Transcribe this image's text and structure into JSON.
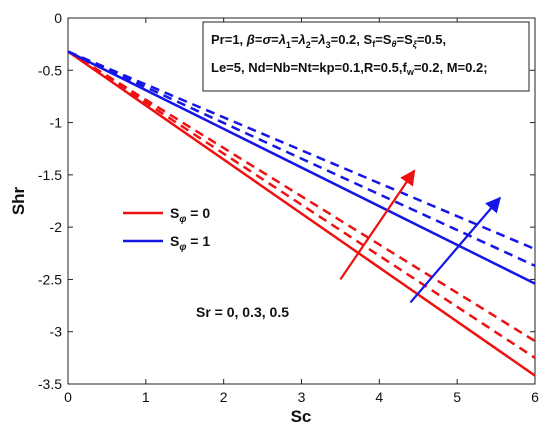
{
  "chart_data": {
    "type": "line",
    "xlabel": "Sc",
    "ylabel": "Shr",
    "xlim": [
      0,
      6
    ],
    "ylim": [
      -3.5,
      0
    ],
    "xticks": [
      "0",
      "1",
      "2",
      "3",
      "4",
      "5",
      "6"
    ],
    "yticks": [
      "0",
      "-0.5",
      "-1",
      "-1.5",
      "-2",
      "-2.5",
      "-3",
      "-3.5"
    ],
    "grid": false,
    "legend_position": "left-middle",
    "parameter_note": {
      "line1": "Pr=1, β=σ=λ₁=λ₂=λ₃=0.2, S_f=S_θ=S_ξ=0.5,",
      "line2": "Le=5, Nd=Nb=Nt=kp=0.1,R=0.5,f_w=0.2, M=0.2;"
    },
    "annotation": "Sr = 0, 0.3, 0.5",
    "colors": {
      "red": "#ee1111",
      "blue": "#1515e6"
    },
    "legend": [
      {
        "label": "S_φ = 0",
        "color": "#ee1111"
      },
      {
        "label": "S_φ = 1",
        "color": "#1515e6"
      }
    ],
    "series": [
      {
        "group": "S_φ = 0",
        "Sr": 0,
        "style": "solid",
        "color": "#ee1111",
        "x": [
          0,
          6
        ],
        "y": [
          -0.32,
          -3.42
        ]
      },
      {
        "group": "S_φ = 0",
        "Sr": 0.3,
        "style": "dashed",
        "color": "#ee1111",
        "x": [
          0,
          6
        ],
        "y": [
          -0.32,
          -3.25
        ]
      },
      {
        "group": "S_φ = 0",
        "Sr": 0.5,
        "style": "dashed",
        "color": "#ee1111",
        "x": [
          0,
          6
        ],
        "y": [
          -0.32,
          -3.09
        ]
      },
      {
        "group": "S_φ = 1",
        "Sr": 0,
        "style": "solid",
        "color": "#1515e6",
        "x": [
          0,
          6
        ],
        "y": [
          -0.32,
          -2.54
        ]
      },
      {
        "group": "S_φ = 1",
        "Sr": 0.3,
        "style": "dashed",
        "color": "#1515e6",
        "x": [
          0,
          6
        ],
        "y": [
          -0.32,
          -2.37
        ]
      },
      {
        "group": "S_φ = 1",
        "Sr": 0.5,
        "style": "dashed",
        "color": "#1515e6",
        "x": [
          0,
          6
        ],
        "y": [
          -0.32,
          -2.21
        ]
      }
    ],
    "arrows": [
      {
        "color": "#ee1111",
        "from": [
          3.5,
          -2.5
        ],
        "to": [
          4.45,
          -1.46
        ]
      },
      {
        "color": "#1515e6",
        "from": [
          4.4,
          -2.72
        ],
        "to": [
          5.55,
          -1.72
        ]
      }
    ]
  }
}
